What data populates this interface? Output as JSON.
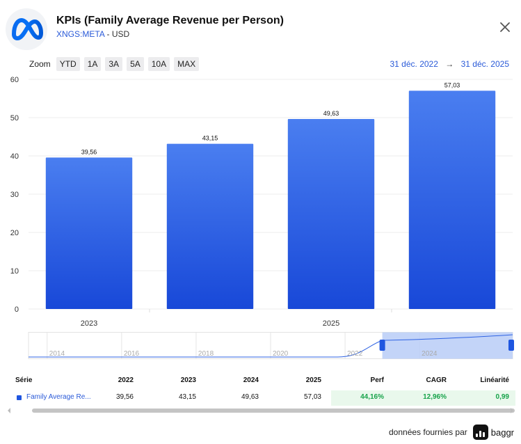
{
  "header": {
    "title": "KPIs (Family Average Revenue per Person)",
    "ticker": "XNGS:META",
    "separator": "-",
    "currency": "USD"
  },
  "zoom": {
    "label": "Zoom",
    "buttons": [
      "YTD",
      "1A",
      "3A",
      "5A",
      "10A",
      "MAX"
    ]
  },
  "date_range": {
    "from": "31 déc. 2022",
    "arrow": "→",
    "to": "31 déc. 2025"
  },
  "chart_data": {
    "type": "bar",
    "categories": [
      "2022",
      "2023",
      "2024",
      "2025"
    ],
    "values": [
      39.56,
      43.15,
      49.63,
      57.03
    ],
    "value_labels": [
      "39,56",
      "43,15",
      "49,63",
      "57,03"
    ],
    "x_tick_labels": [
      "2023",
      "2025"
    ],
    "y_ticks": [
      0,
      10,
      20,
      30,
      40,
      50,
      60
    ],
    "ylim": [
      0,
      60
    ],
    "series_name": "Family Average Revenue per Person",
    "bar_color": "#1f56e0"
  },
  "navigator": {
    "labels": [
      "2014",
      "2016",
      "2018",
      "2020",
      "2022",
      "2024"
    ],
    "range_start_year": 2022,
    "range_end_year": 2025
  },
  "table": {
    "headers": [
      "Série",
      "2022",
      "2023",
      "2024",
      "2025",
      "Perf",
      "CAGR",
      "Linéarité"
    ],
    "rows": [
      {
        "series": "Family Average Re...",
        "v2022": "39,56",
        "v2023": "43,15",
        "v2024": "49,63",
        "v2025": "57,03",
        "perf": "44,16%",
        "cagr": "12,96%",
        "linearity": "0,99"
      }
    ]
  },
  "footer": {
    "text": "données fournies par",
    "brand": "baggr"
  },
  "colors": {
    "accent": "#2a5ad8",
    "bar": "#1f56e0",
    "positive": "#17a34a",
    "positive_bg": "#e9f8ec"
  }
}
